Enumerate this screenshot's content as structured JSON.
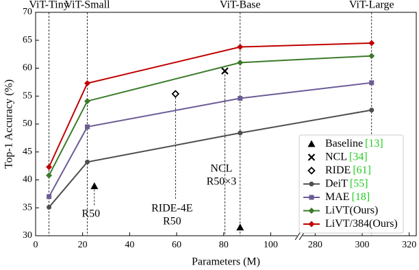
{
  "chart_data": {
    "type": "line",
    "xlabel": "Parameters (M)",
    "ylabel": "Top-1 Accuracy (%)",
    "xlim": [
      0,
      323
    ],
    "xbreak": [
      111,
      275
    ],
    "xticks": [
      0,
      20,
      40,
      60,
      80,
      100,
      280,
      300,
      320
    ],
    "ylim": [
      30,
      70
    ],
    "yticks": [
      30,
      35,
      40,
      45,
      50,
      55,
      60,
      65,
      70
    ],
    "legend": "lower right",
    "model_lines": [
      {
        "label": "ViT-Tiny",
        "x": 5.7
      },
      {
        "label": "ViT-Small",
        "x": 22
      },
      {
        "label": "ViT-Base",
        "x": 87
      },
      {
        "label": "ViT-Large",
        "x": 304
      }
    ],
    "series": [
      {
        "name": "Baseline",
        "ref": "[13]",
        "marker": "triangle",
        "color": "#000000",
        "line": false,
        "x": [
          25,
          87
        ],
        "values": [
          38.9,
          31.5
        ],
        "labels": [
          [
            "R50"
          ],
          null
        ]
      },
      {
        "name": "NCL",
        "ref": "[34]",
        "marker": "x",
        "color": "#000000",
        "line": false,
        "x": [
          80.5
        ],
        "values": [
          59.5
        ],
        "labels": [
          [
            "NCL",
            "R50×3"
          ]
        ]
      },
      {
        "name": "RIDE",
        "ref": "[61]",
        "marker": "diamond-open",
        "color": "#000000",
        "line": false,
        "x": [
          59.5
        ],
        "values": [
          55.4
        ],
        "labels": [
          [
            "RIDE-4E",
            "R50"
          ]
        ]
      },
      {
        "name": "DeiT",
        "ref": "[55]",
        "marker": "circle",
        "color": "#4d4d4d",
        "line": true,
        "x": [
          5.7,
          22,
          87,
          304
        ],
        "values": [
          35.1,
          43.2,
          48.4,
          52.5
        ]
      },
      {
        "name": "MAE",
        "ref": "[18]",
        "marker": "square",
        "color": "#6b5b95",
        "line": true,
        "x": [
          5.7,
          22,
          87,
          304
        ],
        "values": [
          37.0,
          49.5,
          54.6,
          57.4
        ]
      },
      {
        "name": "LiVT(Ours)",
        "marker": "diamond",
        "color": "#3a7a28",
        "line": true,
        "x": [
          5.7,
          22,
          87,
          304
        ],
        "values": [
          40.8,
          54.1,
          61.0,
          62.2
        ]
      },
      {
        "name": "LiVT/384(Ours)",
        "marker": "diamond",
        "color": "#c00000",
        "line": true,
        "x": [
          5.7,
          22,
          87,
          304
        ],
        "values": [
          42.3,
          57.3,
          63.8,
          64.5
        ]
      }
    ]
  }
}
